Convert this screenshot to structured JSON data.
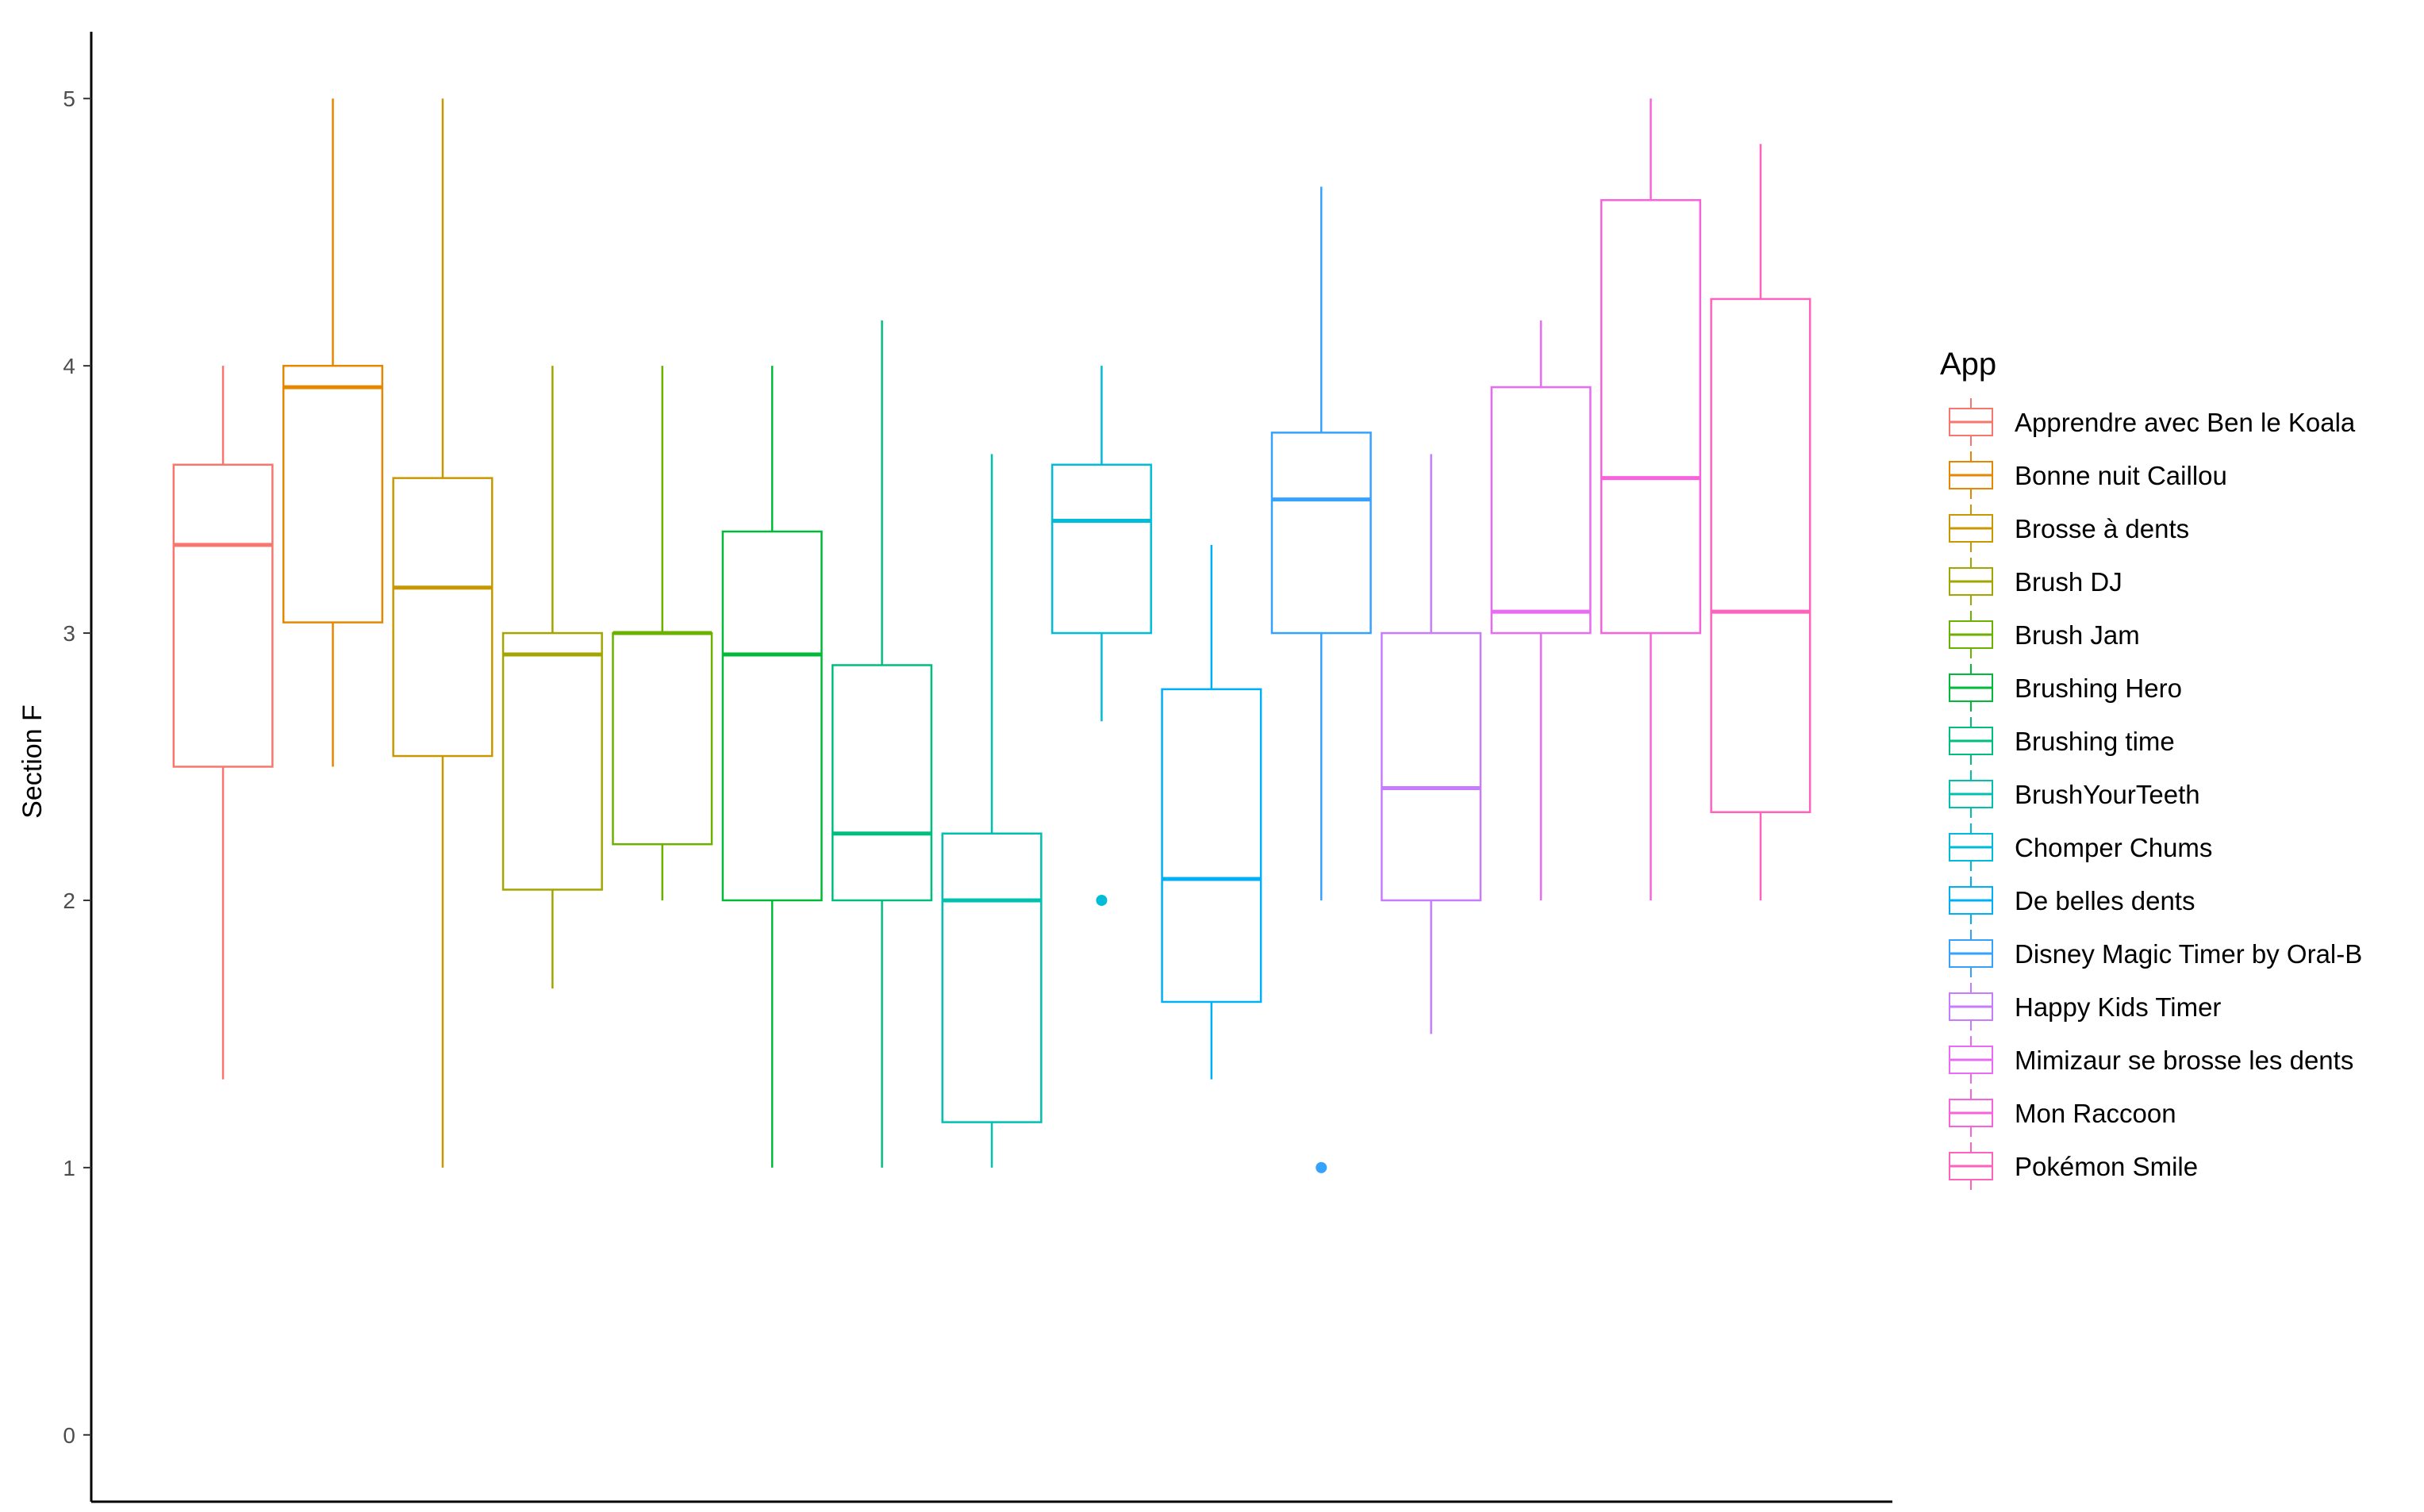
{
  "chart_data": {
    "type": "boxplot",
    "ylabel": "Section F",
    "xlabel": "",
    "ylim": [
      -0.25,
      5.25
    ],
    "yticks": [
      "0",
      "1",
      "2",
      "3",
      "4",
      "5"
    ],
    "grid": false,
    "legend": {
      "title": "App",
      "position": "right"
    },
    "series": [
      {
        "name": "Apprendre avec Ben le Koala",
        "color": "#F8766D",
        "whisker_low": 1.33,
        "q1": 2.5,
        "median": 3.33,
        "q3": 3.63,
        "whisker_high": 4.0,
        "outliers": []
      },
      {
        "name": "Bonne nuit Caillou",
        "color": "#E58700",
        "whisker_low": 2.5,
        "q1": 3.04,
        "median": 3.92,
        "q3": 4.0,
        "whisker_high": 5.0,
        "outliers": []
      },
      {
        "name": "Brosse à dents",
        "color": "#C99800",
        "whisker_low": 1.0,
        "q1": 2.54,
        "median": 3.17,
        "q3": 3.58,
        "whisker_high": 5.0,
        "outliers": []
      },
      {
        "name": "Brush DJ",
        "color": "#A3A500",
        "whisker_low": 1.67,
        "q1": 2.04,
        "median": 2.92,
        "q3": 3.0,
        "whisker_high": 4.0,
        "outliers": []
      },
      {
        "name": "Brush Jam",
        "color": "#6BB100",
        "whisker_low": 2.0,
        "q1": 2.21,
        "median": 3.0,
        "q3": 3.0,
        "whisker_high": 4.0,
        "outliers": []
      },
      {
        "name": "Brushing Hero",
        "color": "#00BA38",
        "whisker_low": 1.0,
        "q1": 2.0,
        "median": 2.92,
        "q3": 3.38,
        "whisker_high": 4.0,
        "outliers": []
      },
      {
        "name": "Brushing time",
        "color": "#00BF7D",
        "whisker_low": 1.0,
        "q1": 2.0,
        "median": 2.25,
        "q3": 2.88,
        "whisker_high": 4.17,
        "outliers": []
      },
      {
        "name": "BrushYourTeeth",
        "color": "#00C0AF",
        "whisker_low": 1.0,
        "q1": 1.17,
        "median": 2.0,
        "q3": 2.25,
        "whisker_high": 3.67,
        "outliers": []
      },
      {
        "name": "Chomper Chums",
        "color": "#00BCD8",
        "whisker_low": 2.67,
        "q1": 3.0,
        "median": 3.42,
        "q3": 3.63,
        "whisker_high": 4.0,
        "outliers": [
          2.0
        ]
      },
      {
        "name": "De belles dents",
        "color": "#00B0F6",
        "whisker_low": 1.33,
        "q1": 1.62,
        "median": 2.08,
        "q3": 2.79,
        "whisker_high": 3.33,
        "outliers": []
      },
      {
        "name": "Disney Magic Timer by Oral-B",
        "color": "#35A2FF",
        "whisker_low": 2.0,
        "q1": 3.0,
        "median": 3.5,
        "q3": 3.75,
        "whisker_high": 4.67,
        "outliers": [
          1.0
        ]
      },
      {
        "name": "Happy Kids Timer",
        "color": "#C77CFF",
        "whisker_low": 1.5,
        "q1": 2.0,
        "median": 2.42,
        "q3": 3.0,
        "whisker_high": 3.67,
        "outliers": []
      },
      {
        "name": "Mimizaur se brosse les dents",
        "color": "#E76BF3",
        "whisker_low": 2.0,
        "q1": 3.0,
        "median": 3.08,
        "q3": 3.92,
        "whisker_high": 4.17,
        "outliers": []
      },
      {
        "name": "Mon Raccoon",
        "color": "#FA62DB",
        "whisker_low": 2.0,
        "q1": 3.0,
        "median": 3.58,
        "q3": 4.62,
        "whisker_high": 5.0,
        "outliers": []
      },
      {
        "name": "Pokémon Smile",
        "color": "#FF62BC",
        "whisker_low": 2.0,
        "q1": 2.33,
        "median": 3.08,
        "q3": 4.25,
        "whisker_high": 4.83,
        "outliers": []
      }
    ]
  }
}
